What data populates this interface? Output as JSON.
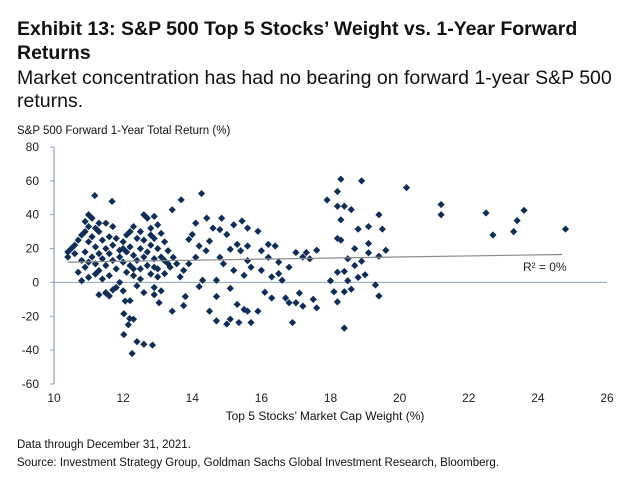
{
  "title": "Exhibit 13: S&P 500 Top 5 Stocks’ Weight vs. 1-Year Forward Returns",
  "subtitle": "Market concentration has had no bearing on forward 1-year S&P 500 returns.",
  "footnotes": {
    "data_note": "Data through December 31, 2021.",
    "source": "Source: Investment Strategy Group, Goldman Sachs Global Investment Research, Bloomberg."
  },
  "colors": {
    "marker": "#0f2d55",
    "axis": "#8ea2bd",
    "trend": "#8a8a8a"
  },
  "chart_data": {
    "type": "scatter",
    "title": "Exhibit 13: S&P 500 Top 5 Stocks’ Weight vs. 1-Year Forward Returns",
    "xlabel": "Top 5 Stocks’ Market Cap Weight (%)",
    "ylabel": "S&P 500 Forward 1-Year Total Return (%)",
    "xlim": [
      10,
      26
    ],
    "ylim": [
      -60,
      80
    ],
    "xticks": [
      "10",
      "12",
      "14",
      "16",
      "18",
      "20",
      "22",
      "24",
      "26"
    ],
    "yticks": [
      "80",
      "60",
      "40",
      "20",
      "0",
      "-20",
      "-40",
      "-60"
    ],
    "grid": false,
    "trendline": {
      "x": [
        10.4,
        24.7
      ],
      "y": [
        12,
        16.5
      ],
      "label": "R² = 0%"
    },
    "points": [
      [
        10.4,
        18
      ],
      [
        10.4,
        15
      ],
      [
        10.5,
        20
      ],
      [
        10.6,
        17
      ],
      [
        10.6,
        22
      ],
      [
        10.7,
        25
      ],
      [
        10.7,
        6
      ],
      [
        10.8,
        28
      ],
      [
        10.8,
        13
      ],
      [
        10.8,
        1
      ],
      [
        10.9,
        30
      ],
      [
        10.9,
        18
      ],
      [
        10.9,
        9
      ],
      [
        11.0,
        40
      ],
      [
        11.0,
        33
      ],
      [
        11.0,
        24
      ],
      [
        11.0,
        3
      ],
      [
        11.1,
        38
      ],
      [
        11.1,
        27
      ],
      [
        11.1,
        15
      ],
      [
        11.2,
        21
      ],
      [
        11.2,
        11
      ],
      [
        11.2,
        5
      ],
      [
        11.3,
        35
      ],
      [
        11.3,
        30
      ],
      [
        11.3,
        17
      ],
      [
        11.3,
        7
      ],
      [
        11.4,
        25
      ],
      [
        11.4,
        14
      ],
      [
        11.4,
        2
      ],
      [
        11.5,
        35
      ],
      [
        11.5,
        20
      ],
      [
        11.5,
        10
      ],
      [
        11.5,
        -6
      ],
      [
        11.6,
        17
      ],
      [
        11.6,
        4
      ],
      [
        11.6,
        -8
      ],
      [
        11.7,
        33
      ],
      [
        11.7,
        22
      ],
      [
        11.7,
        13
      ],
      [
        11.8,
        26
      ],
      [
        11.8,
        8
      ],
      [
        11.8,
        -3
      ],
      [
        11.9,
        19
      ],
      [
        11.9,
        15
      ],
      [
        11.9,
        0
      ],
      [
        12.0,
        24
      ],
      [
        12.0,
        12
      ],
      [
        12.0,
        -5
      ],
      [
        12.1,
        28
      ],
      [
        12.1,
        18
      ],
      [
        12.1,
        6
      ],
      [
        12.2,
        30
      ],
      [
        12.2,
        21
      ],
      [
        12.2,
        10
      ],
      [
        12.3,
        33
      ],
      [
        12.3,
        16
      ],
      [
        12.3,
        4
      ],
      [
        12.4,
        26
      ],
      [
        12.4,
        13
      ],
      [
        12.4,
        -2
      ],
      [
        12.5,
        30
      ],
      [
        12.5,
        20
      ],
      [
        12.5,
        8
      ],
      [
        12.6,
        40
      ],
      [
        12.6,
        25
      ],
      [
        12.6,
        15
      ],
      [
        12.6,
        -6
      ],
      [
        12.7,
        38
      ],
      [
        12.7,
        18
      ],
      [
        12.7,
        10
      ],
      [
        12.8,
        32
      ],
      [
        12.8,
        22
      ],
      [
        12.8,
        5
      ],
      [
        12.9,
        39
      ],
      [
        12.9,
        26
      ],
      [
        12.9,
        14
      ],
      [
        12.9,
        -3
      ],
      [
        13.0,
        34
      ],
      [
        13.0,
        20
      ],
      [
        13.0,
        8
      ],
      [
        13.1,
        29
      ],
      [
        13.1,
        15
      ],
      [
        13.2,
        24
      ],
      [
        13.3,
        11
      ],
      [
        13.1,
        -5
      ],
      [
        12.3,
        8
      ],
      [
        12.0,
        20
      ],
      [
        11.6,
        27
      ],
      [
        11.2,
        32
      ],
      [
        10.9,
        36
      ],
      [
        11.0,
        12
      ],
      [
        12.5,
        2
      ],
      [
        12.8,
        28
      ],
      [
        11.18,
        51.3
      ],
      [
        11.68,
        47.9
      ],
      [
        13.68,
        48.8
      ],
      [
        14.27,
        52.5
      ],
      [
        13.42,
        42.9
      ],
      [
        14.42,
        38
      ],
      [
        14.85,
        37.9
      ],
      [
        15.44,
        36.3
      ],
      [
        12.02,
        -18.5
      ],
      [
        12.02,
        -30.8
      ],
      [
        12.19,
        -21.3
      ],
      [
        12.3,
        -21.7
      ],
      [
        12.15,
        -25
      ],
      [
        12.26,
        -42
      ],
      [
        12.4,
        -35
      ],
      [
        12.6,
        -36.5
      ],
      [
        12.85,
        -37
      ],
      [
        12.06,
        -11
      ],
      [
        12.2,
        -10.8
      ],
      [
        11.7,
        -4.4
      ],
      [
        11.5,
        -6.3
      ],
      [
        11.3,
        -7.3
      ],
      [
        13.42,
        -17
      ],
      [
        13.75,
        -13.7
      ],
      [
        13.8,
        -8.3
      ],
      [
        13.04,
        -12
      ],
      [
        12.9,
        -7.3
      ],
      [
        14.5,
        -17
      ],
      [
        14.7,
        -22.7
      ],
      [
        15.0,
        -24.6
      ],
      [
        15.1,
        -21.7
      ],
      [
        15.3,
        -13
      ],
      [
        15.5,
        -16
      ],
      [
        15.7,
        -23.7
      ],
      [
        15.35,
        -23.7
      ],
      [
        15.6,
        -17
      ],
      [
        15.9,
        -17
      ],
      [
        14.7,
        -8.3
      ],
      [
        15.1,
        -3.5
      ],
      [
        16.1,
        -5.8
      ],
      [
        16.3,
        -9.2
      ],
      [
        16.7,
        -9.2
      ],
      [
        16.9,
        -23.7
      ],
      [
        16.8,
        -12
      ],
      [
        17.0,
        -12
      ],
      [
        17.1,
        -6.3
      ],
      [
        14.2,
        -2.5
      ],
      [
        14.7,
        1.3
      ],
      [
        14.3,
        1.3
      ],
      [
        16.6,
        1.3
      ],
      [
        16.3,
        3.3
      ],
      [
        16.5,
        5.2
      ],
      [
        16.8,
        9
      ],
      [
        16.5,
        12
      ],
      [
        16.2,
        14.8
      ],
      [
        16.0,
        18.7
      ],
      [
        16.2,
        22.5
      ],
      [
        16.4,
        21.5
      ],
      [
        17.0,
        17.7
      ],
      [
        17.3,
        17.7
      ],
      [
        16.0,
        7.1
      ],
      [
        15.7,
        9
      ],
      [
        15.6,
        12.9
      ],
      [
        15.5,
        4.2
      ],
      [
        15.2,
        7.1
      ],
      [
        14.9,
        11
      ],
      [
        14.8,
        14.8
      ],
      [
        15.1,
        19.6
      ],
      [
        15.3,
        22.5
      ],
      [
        15.4,
        18.7
      ],
      [
        15.6,
        21.5
      ],
      [
        15.9,
        30.2
      ],
      [
        15.6,
        32.1
      ],
      [
        15.2,
        34
      ],
      [
        15.0,
        28.3
      ],
      [
        14.8,
        31.2
      ],
      [
        14.6,
        32.1
      ],
      [
        14.1,
        35
      ],
      [
        14.0,
        28.3
      ],
      [
        13.9,
        25.4
      ],
      [
        14.2,
        21.5
      ],
      [
        14.5,
        24.4
      ],
      [
        14.4,
        18.7
      ],
      [
        14.1,
        14.8
      ],
      [
        13.9,
        11
      ],
      [
        13.75,
        7.1
      ],
      [
        13.55,
        11
      ],
      [
        13.36,
        9
      ],
      [
        13.45,
        14.8
      ],
      [
        13.3,
        18.7
      ],
      [
        13.2,
        12.9
      ],
      [
        13.65,
        3.3
      ],
      [
        13.2,
        5.2
      ],
      [
        13.0,
        3.3
      ],
      [
        12.9,
        9
      ],
      [
        18.3,
        61
      ],
      [
        18.9,
        60
      ],
      [
        20.2,
        56
      ],
      [
        21.2,
        46
      ],
      [
        21.2,
        40
      ],
      [
        22.5,
        41
      ],
      [
        22.7,
        28
      ],
      [
        23.3,
        30
      ],
      [
        23.4,
        36.5
      ],
      [
        23.6,
        42.6
      ],
      [
        24.8,
        31.5
      ],
      [
        17.9,
        48.7
      ],
      [
        18.2,
        53.7
      ],
      [
        18.2,
        45
      ],
      [
        18.4,
        45
      ],
      [
        18.6,
        43
      ],
      [
        18.3,
        37
      ],
      [
        19.4,
        40
      ],
      [
        18.8,
        31.5
      ],
      [
        19.1,
        33
      ],
      [
        19.5,
        31.5
      ],
      [
        18.2,
        26
      ],
      [
        18.3,
        25
      ],
      [
        19.1,
        23
      ],
      [
        18.7,
        20
      ],
      [
        19.1,
        17.5
      ],
      [
        19.6,
        19
      ],
      [
        17.6,
        19
      ],
      [
        18.5,
        14
      ],
      [
        19.4,
        15.5
      ],
      [
        18.9,
        12.5
      ],
      [
        18.7,
        10
      ],
      [
        18.2,
        6
      ],
      [
        18.4,
        6.5
      ],
      [
        19.0,
        4.5
      ],
      [
        18.0,
        1
      ],
      [
        18.5,
        1
      ],
      [
        18.8,
        3
      ],
      [
        19.3,
        -1.5
      ],
      [
        18.1,
        -5.5
      ],
      [
        18.4,
        -5.5
      ],
      [
        18.6,
        -4
      ],
      [
        19.4,
        -8
      ],
      [
        18.2,
        -11.5
      ],
      [
        17.5,
        -10
      ],
      [
        17.6,
        -15
      ],
      [
        17.2,
        -14
      ],
      [
        18.4,
        -27
      ],
      [
        17.2,
        15
      ],
      [
        17.4,
        14
      ]
    ]
  }
}
